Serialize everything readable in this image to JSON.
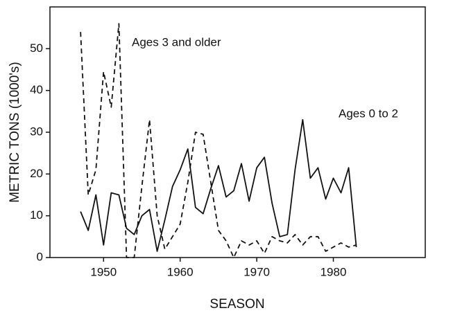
{
  "chart_data": {
    "type": "line",
    "x_label": "SEASON",
    "y_label": "METRIC TONS (1000's)",
    "x": [
      1947,
      1948,
      1949,
      1950,
      1951,
      1952,
      1953,
      1954,
      1955,
      1956,
      1957,
      1958,
      1959,
      1960,
      1961,
      1962,
      1963,
      1964,
      1965,
      1966,
      1967,
      1968,
      1969,
      1970,
      1971,
      1972,
      1973,
      1974,
      1975,
      1976,
      1977,
      1978,
      1979,
      1980,
      1981,
      1982,
      1983
    ],
    "series": [
      {
        "name": "Ages 0 to 2",
        "color": "#111111",
        "line_style": "solid",
        "values": [
          11,
          6.5,
          15,
          3,
          15.5,
          15,
          7,
          5.5,
          10,
          11.5,
          1.5,
          9,
          17,
          21,
          26,
          12,
          10.5,
          16.5,
          22,
          14.5,
          16,
          22.5,
          13.5,
          21.5,
          24,
          13,
          5,
          5.5,
          21,
          33,
          19,
          21.5,
          14,
          19,
          15.5,
          21.5,
          2.5
        ]
      },
      {
        "name": "Ages 3 and older",
        "color": "#111111",
        "line_style": "dashed",
        "values": [
          54,
          15,
          21,
          44.5,
          36,
          56,
          0,
          0,
          17,
          33,
          10,
          2,
          5,
          8,
          18,
          30,
          29.5,
          18,
          6.5,
          4,
          0,
          4,
          3,
          4,
          1,
          5,
          4,
          3.5,
          5.5,
          3,
          5,
          5,
          1.5,
          2.5,
          3.5,
          2.5,
          3
        ]
      }
    ],
    "xlim": [
      1943,
      1992
    ],
    "xticks": [
      1950,
      1960,
      1970,
      1980
    ],
    "ylim": [
      0,
      60
    ],
    "yticks": [
      0,
      10,
      20,
      30,
      40,
      50
    ],
    "grid": false
  }
}
